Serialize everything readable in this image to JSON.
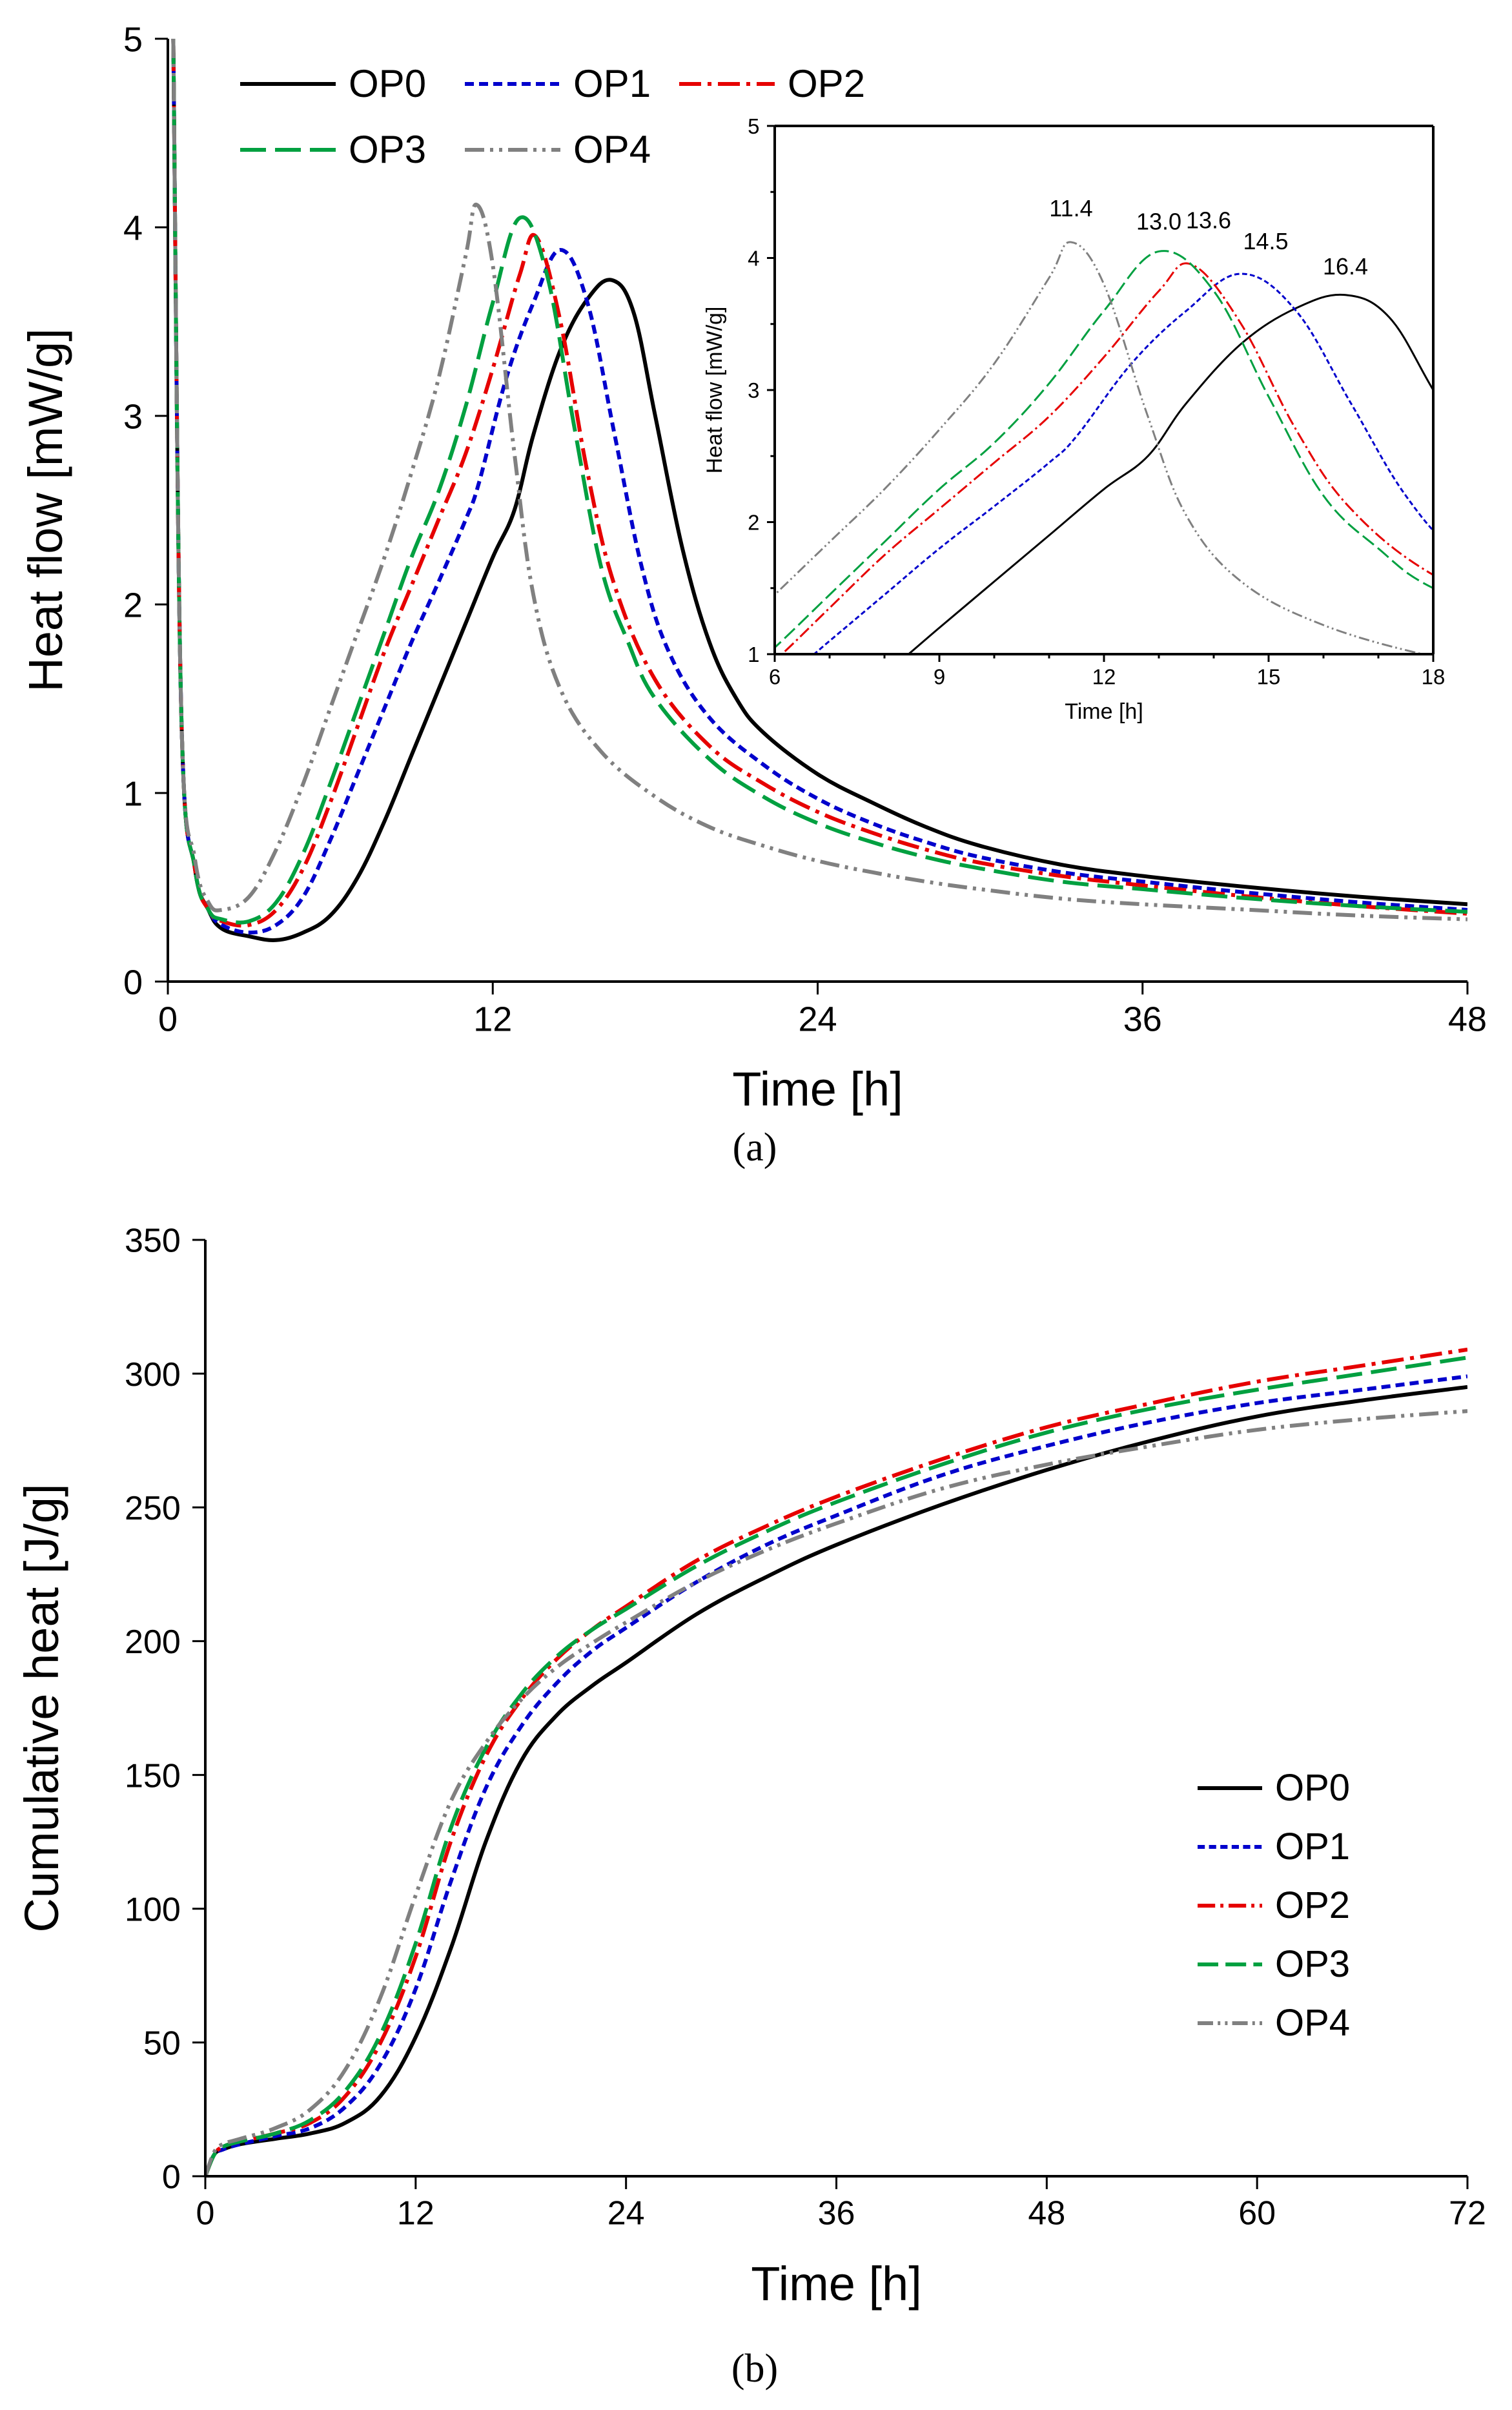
{
  "chart_data": [
    {
      "id": "panel-a",
      "type": "line",
      "panel_label": "(a)",
      "xlabel": "Time [h]",
      "ylabel": "Heat flow [mW/g]",
      "xlim": [
        0,
        48
      ],
      "ylim": [
        0,
        5
      ],
      "xticks": [
        0,
        12,
        24,
        36,
        48
      ],
      "yticks": [
        0,
        1,
        2,
        3,
        4,
        5
      ],
      "legend_position": "top-left",
      "series": [
        {
          "name": "OP0",
          "color": "#000000",
          "dash": "solid",
          "x": [
            0.2,
            0.5,
            1,
            1.5,
            2,
            3,
            4,
            5,
            6,
            7,
            8,
            9,
            10,
            11,
            12,
            12.8,
            13.5,
            14.5,
            15.5,
            16.4,
            17.2,
            18,
            19,
            20,
            21,
            22,
            24,
            26,
            28,
            30,
            33,
            36,
            40,
            44,
            48
          ],
          "y": [
            5,
            1.4,
            0.6,
            0.38,
            0.28,
            0.24,
            0.22,
            0.26,
            0.35,
            0.55,
            0.85,
            1.2,
            1.55,
            1.9,
            2.25,
            2.5,
            2.9,
            3.35,
            3.62,
            3.72,
            3.55,
            3.0,
            2.3,
            1.8,
            1.5,
            1.32,
            1.1,
            0.95,
            0.82,
            0.72,
            0.62,
            0.56,
            0.5,
            0.45,
            0.41
          ]
        },
        {
          "name": "OP1",
          "color": "#0000cc",
          "dash": "short-dash",
          "x": [
            0.2,
            0.5,
            1,
            1.5,
            2,
            3,
            4,
            5,
            6,
            7,
            8,
            9,
            10,
            11,
            11.5,
            12.5,
            13.5,
            14.5,
            15.5,
            16.5,
            17.5,
            18.5,
            20,
            22,
            24,
            26,
            28,
            30,
            33,
            36,
            40,
            44,
            48
          ],
          "y": [
            5,
            1.4,
            0.6,
            0.38,
            0.3,
            0.26,
            0.3,
            0.45,
            0.75,
            1.1,
            1.45,
            1.8,
            2.12,
            2.45,
            2.65,
            3.2,
            3.6,
            3.88,
            3.6,
            2.9,
            2.2,
            1.75,
            1.4,
            1.15,
            0.97,
            0.84,
            0.74,
            0.66,
            0.58,
            0.53,
            0.47,
            0.42,
            0.38
          ]
        },
        {
          "name": "OP2",
          "color": "#e60000",
          "dash": "dash-dot",
          "x": [
            0.2,
            0.5,
            1,
            1.5,
            2,
            3,
            4,
            5,
            6,
            7,
            8,
            9,
            10,
            11,
            12,
            13,
            13.6,
            14.5,
            15.5,
            16.5,
            18,
            20,
            22,
            24,
            26,
            28,
            30,
            33,
            36,
            40,
            44,
            48
          ],
          "y": [
            5,
            1.4,
            0.6,
            0.38,
            0.32,
            0.3,
            0.38,
            0.6,
            0.95,
            1.35,
            1.75,
            2.1,
            2.45,
            2.8,
            3.25,
            3.75,
            3.95,
            3.5,
            2.7,
            2.1,
            1.6,
            1.25,
            1.05,
            0.9,
            0.79,
            0.7,
            0.63,
            0.56,
            0.51,
            0.45,
            0.4,
            0.36
          ]
        },
        {
          "name": "OP3",
          "color": "#00a040",
          "dash": "long-dash",
          "x": [
            0.2,
            0.5,
            1,
            1.5,
            2,
            3,
            4,
            5,
            6,
            7,
            8,
            9,
            10,
            11,
            12,
            13,
            14,
            15,
            16,
            17,
            18,
            20,
            22,
            24,
            26,
            28,
            30,
            33,
            36,
            40,
            44,
            48
          ],
          "y": [
            5,
            1.4,
            0.6,
            0.38,
            0.33,
            0.32,
            0.42,
            0.68,
            1.05,
            1.45,
            1.85,
            2.25,
            2.6,
            3.05,
            3.6,
            4.05,
            3.75,
            2.95,
            2.2,
            1.8,
            1.5,
            1.18,
            0.98,
            0.84,
            0.74,
            0.66,
            0.6,
            0.53,
            0.49,
            0.44,
            0.4,
            0.37
          ]
        },
        {
          "name": "OP4",
          "color": "#808080",
          "dash": "dash-dot-dot",
          "x": [
            0.2,
            0.5,
            1,
            1.5,
            2,
            3,
            4,
            5,
            6,
            7,
            8,
            9,
            10,
            11,
            11.4,
            12,
            12.8,
            13.5,
            14.5,
            16,
            18,
            20,
            22,
            24,
            26,
            28,
            30,
            33,
            36,
            40,
            44,
            48
          ],
          "y": [
            5,
            1.4,
            0.65,
            0.42,
            0.38,
            0.45,
            0.7,
            1.05,
            1.45,
            1.85,
            2.25,
            2.7,
            3.2,
            3.85,
            4.12,
            3.8,
            2.8,
            2.05,
            1.55,
            1.22,
            0.98,
            0.82,
            0.72,
            0.64,
            0.58,
            0.53,
            0.49,
            0.44,
            0.41,
            0.38,
            0.35,
            0.33
          ]
        }
      ],
      "inset": {
        "xlabel": "Time [h]",
        "ylabel": "Heat flow [mW/g]",
        "xlim": [
          6,
          18
        ],
        "ylim": [
          1,
          5
        ],
        "xticks": [
          6,
          9,
          12,
          15,
          18
        ],
        "yticks": [
          1,
          2,
          3,
          4,
          5
        ],
        "peak_annotations": [
          {
            "label": "11.4",
            "x": 11.4,
            "y": 4.12,
            "series": "OP4"
          },
          {
            "label": "13.0",
            "x": 13.0,
            "y": 4.05,
            "series": "OP3"
          },
          {
            "label": "13.6",
            "x": 13.6,
            "y": 3.95,
            "series": "OP2"
          },
          {
            "label": "14.5",
            "x": 14.5,
            "y": 3.88,
            "series": "OP1"
          },
          {
            "label": "16.4",
            "x": 16.4,
            "y": 3.72,
            "series": "OP0"
          }
        ]
      }
    },
    {
      "id": "panel-b",
      "type": "line",
      "panel_label": "(b)",
      "xlabel": "Time [h]",
      "ylabel": "Cumulative heat [J/g]",
      "xlim": [
        0,
        72
      ],
      "ylim": [
        0,
        350
      ],
      "xticks": [
        0,
        12,
        24,
        36,
        48,
        60,
        72
      ],
      "yticks": [
        0,
        50,
        100,
        150,
        200,
        250,
        300,
        350
      ],
      "legend_position": "center-right",
      "series": [
        {
          "name": "OP0",
          "color": "#000000",
          "dash": "solid",
          "x": [
            0,
            0.5,
            1,
            2,
            4,
            6,
            8,
            10,
            12,
            14,
            16,
            18,
            20,
            22,
            24,
            28,
            32,
            36,
            42,
            48,
            54,
            60,
            66,
            72
          ],
          "y": [
            0,
            8,
            10,
            12,
            14,
            16,
            20,
            30,
            52,
            85,
            125,
            155,
            172,
            183,
            192,
            210,
            224,
            236,
            251,
            264,
            275,
            284,
            290,
            295
          ]
        },
        {
          "name": "OP1",
          "color": "#0000cc",
          "dash": "short-dash",
          "x": [
            0,
            0.5,
            1,
            2,
            4,
            6,
            8,
            10,
            12,
            14,
            16,
            18,
            20,
            22,
            24,
            28,
            32,
            36,
            42,
            48,
            54,
            60,
            66,
            72
          ],
          "y": [
            0,
            8,
            10,
            12,
            15,
            18,
            26,
            42,
            70,
            110,
            145,
            168,
            184,
            196,
            205,
            222,
            236,
            247,
            262,
            273,
            282,
            289,
            294,
            299
          ]
        },
        {
          "name": "OP2",
          "color": "#e60000",
          "dash": "dash-dot",
          "x": [
            0,
            0.5,
            1,
            2,
            4,
            6,
            8,
            10,
            12,
            14,
            16,
            18,
            20,
            22,
            24,
            28,
            32,
            36,
            42,
            48,
            54,
            60,
            66,
            72
          ],
          "y": [
            0,
            8,
            11,
            13,
            16,
            20,
            30,
            50,
            82,
            125,
            157,
            178,
            193,
            204,
            213,
            230,
            243,
            254,
            268,
            280,
            289,
            297,
            303,
            309
          ]
        },
        {
          "name": "OP3",
          "color": "#00a040",
          "dash": "long-dash",
          "x": [
            0,
            0.5,
            1,
            2,
            4,
            6,
            8,
            10,
            12,
            14,
            16,
            18,
            20,
            22,
            24,
            28,
            32,
            36,
            42,
            48,
            54,
            60,
            66,
            72
          ],
          "y": [
            0,
            8,
            11,
            13,
            16,
            21,
            32,
            53,
            87,
            130,
            160,
            180,
            194,
            204,
            212,
            228,
            241,
            252,
            266,
            278,
            287,
            294,
            300,
            306
          ]
        },
        {
          "name": "OP4",
          "color": "#808080",
          "dash": "dash-dot-dot",
          "x": [
            0,
            0.5,
            1,
            2,
            4,
            6,
            8,
            10,
            12,
            14,
            16,
            18,
            20,
            22,
            24,
            28,
            32,
            36,
            42,
            48,
            54,
            60,
            66,
            72
          ],
          "y": [
            0,
            9,
            12,
            14,
            18,
            25,
            40,
            67,
            105,
            140,
            162,
            178,
            190,
            199,
            207,
            222,
            234,
            244,
            257,
            266,
            273,
            279,
            283,
            286
          ]
        }
      ]
    }
  ]
}
